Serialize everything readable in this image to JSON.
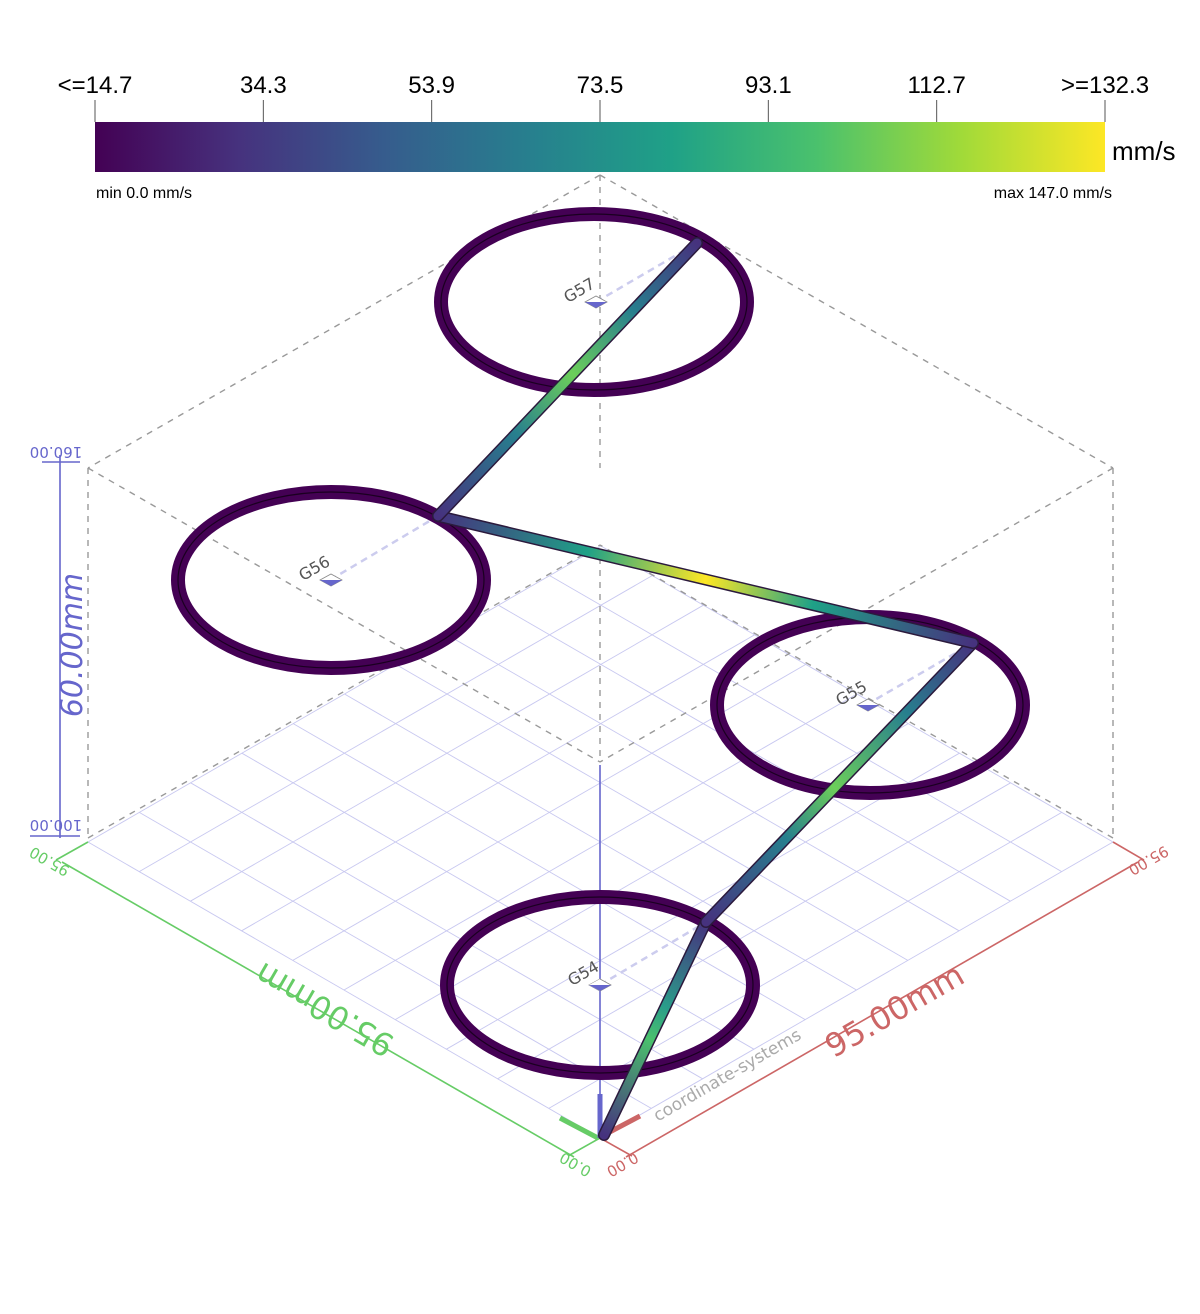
{
  "colorbar": {
    "ticks": [
      "<=14.7",
      "34.3",
      "53.9",
      "73.5",
      "93.1",
      "112.7",
      ">=132.3"
    ],
    "unit": "mm/s",
    "min_label": "min 0.0 mm/s",
    "max_label": "max 147.0 mm/s",
    "colors": [
      "#440154",
      "#46327e",
      "#365c8d",
      "#277f8e",
      "#1fa187",
      "#4ac16d",
      "#a0da39",
      "#fde725"
    ]
  },
  "axes": {
    "x": {
      "length_label": "95.00mm",
      "start": "0.00",
      "end": "95.00",
      "color": "#cc6666"
    },
    "y": {
      "length_label": "95.00mm",
      "start": "0.00",
      "end": "95.00",
      "color": "#66cc66"
    },
    "z": {
      "length_label": "60.00mm",
      "start": "100.00",
      "end": "160.00",
      "color": "#6666cc"
    }
  },
  "wcs_labels": [
    {
      "name": "G54"
    },
    {
      "name": "G55"
    },
    {
      "name": "G56"
    },
    {
      "name": "G57"
    }
  ],
  "toolpath_note": "coordinate-systems",
  "colors": {
    "circle_path": "#440154",
    "grid": "#c8c8f0",
    "bbox": "#999999",
    "wcs_marker": "#6666cc"
  }
}
